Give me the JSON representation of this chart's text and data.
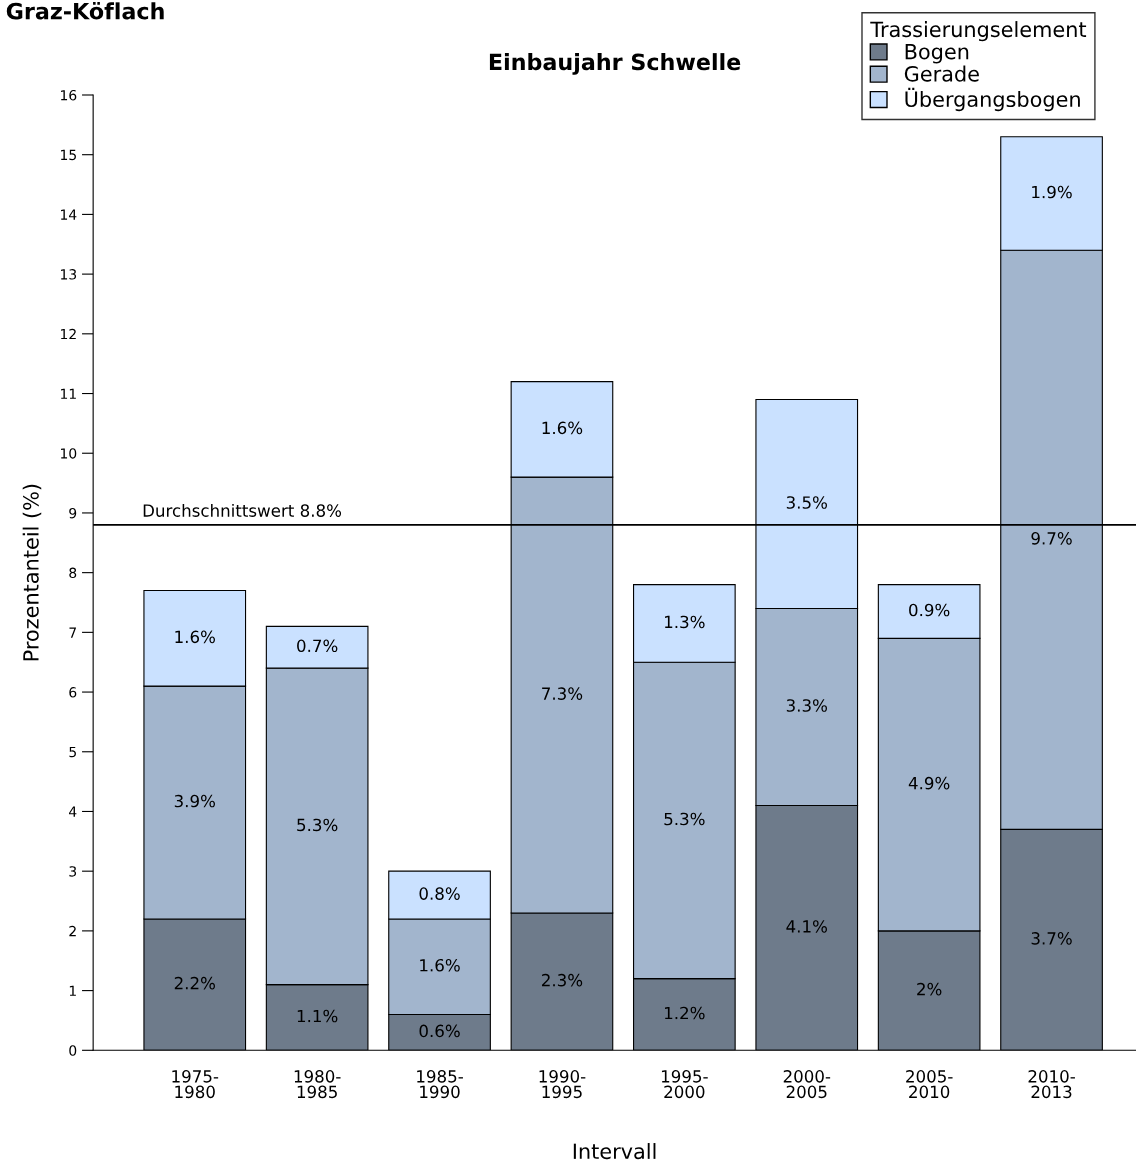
{
  "chart_data": {
    "type": "bar",
    "stacked": true,
    "title": "Einbaujahr Schwelle",
    "subtitle": "Graz-Köflach",
    "xlabel": "Intervall",
    "ylabel": "Prozentanteil (%)",
    "legend_title": "Trassierungselement",
    "legend": "top right",
    "categories": [
      "1975-\n1980",
      "1980-\n1985",
      "1985-\n1990",
      "1990-\n1995",
      "1995-\n2000",
      "2000-\n2005",
      "2005-\n2010",
      "2010-\n2013"
    ],
    "series": [
      {
        "name": "Bogen",
        "color": "#6e7b8b",
        "values": [
          2.2,
          1.1,
          0.6,
          2.3,
          1.2,
          4.1,
          2,
          3.7
        ],
        "value_labels": [
          "2.2%",
          "1.1%",
          "0.6%",
          "2.3%",
          "1.2%",
          "4.1%",
          "2%",
          "3.7%"
        ]
      },
      {
        "name": "Gerade",
        "color": "#a2b5cd",
        "values": [
          3.9,
          5.3,
          1.6,
          7.3,
          5.3,
          3.3,
          4.9,
          9.7
        ],
        "value_labels": [
          "3.9%",
          "5.3%",
          "1.6%",
          "7.3%",
          "5.3%",
          "3.3%",
          "4.9%",
          "9.7%"
        ]
      },
      {
        "name": "Übergangsbogen",
        "color": "#cae1ff",
        "values": [
          1.6,
          0.7,
          0.8,
          1.6,
          1.3,
          3.5,
          0.9,
          1.9
        ],
        "value_labels": [
          "1.6%",
          "0.7%",
          "0.8%",
          "1.6%",
          "1.3%",
          "3.5%",
          "0.9%",
          "1.9%"
        ]
      }
    ],
    "ylim": [
      0,
      16
    ],
    "yticks": [
      0,
      1,
      2,
      3,
      4,
      5,
      6,
      7,
      8,
      9,
      10,
      11,
      12,
      13,
      14,
      15,
      16
    ],
    "grid": false,
    "ref_lines": [
      {
        "axis": "y",
        "value": 8.8,
        "label": "Durchschnittswert 8.8%",
        "color": "#000000"
      }
    ]
  }
}
